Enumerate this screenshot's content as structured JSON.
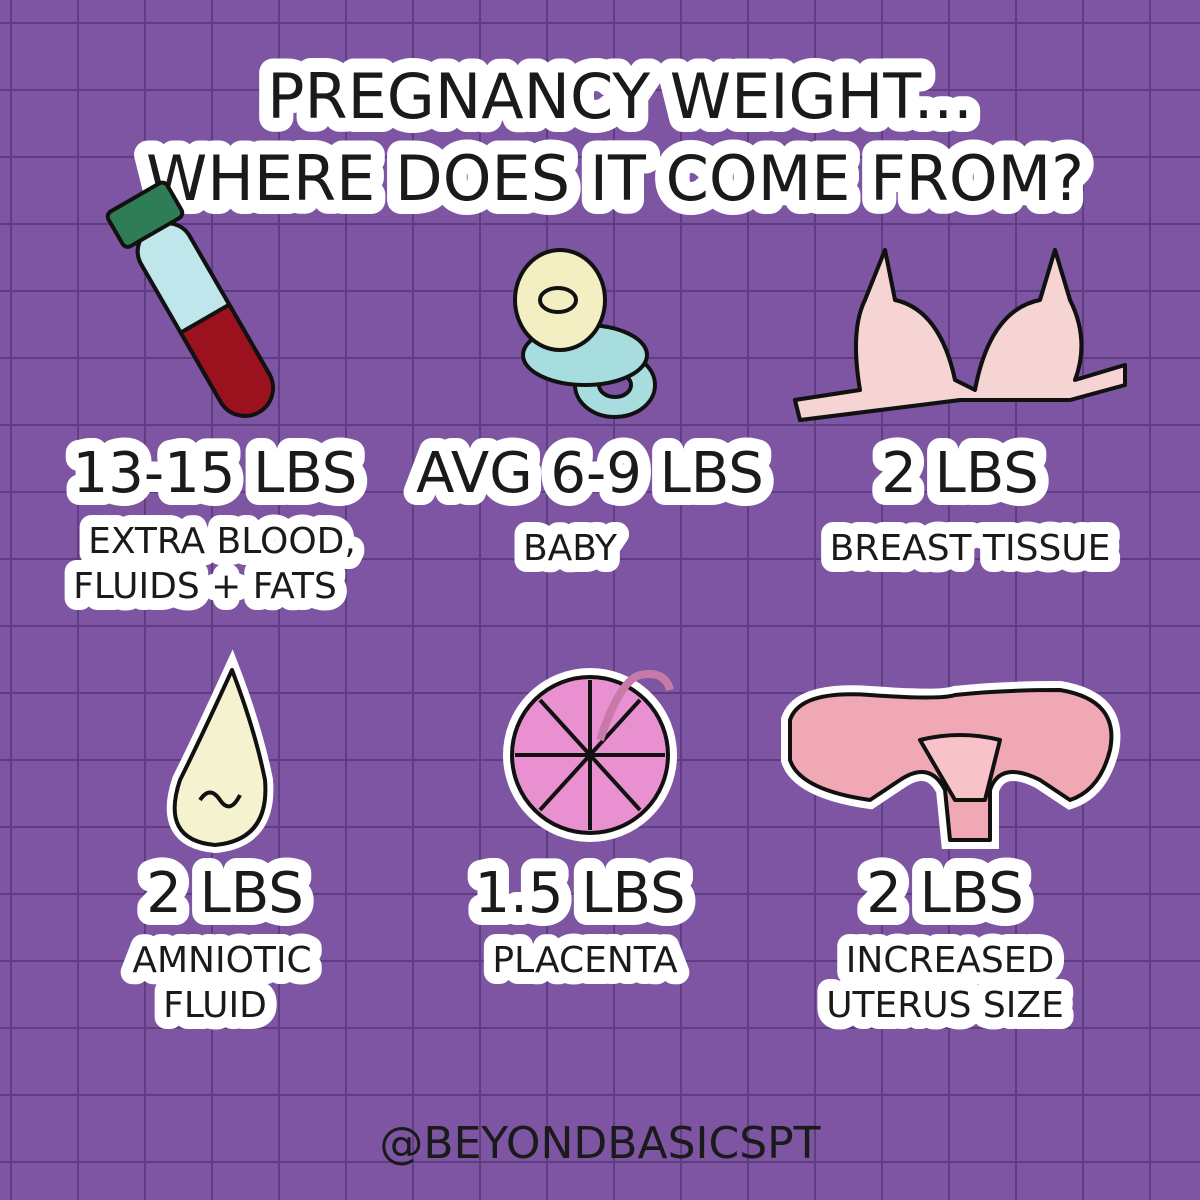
{
  "header": {
    "title": [
      "PREGNANCY WEIGHT...",
      "WHERE DOES IT COME FROM?"
    ]
  },
  "items": [
    {
      "amount": "13-15 LBS",
      "label": [
        "EXTRA BLOOD,",
        "FLUIDS + FATS"
      ]
    },
    {
      "amount": "AVG 6-9 LBS",
      "label": [
        "BABY"
      ]
    },
    {
      "amount": "2 LBS",
      "label": [
        "BREAST TISSUE"
      ]
    },
    {
      "amount": "2 LBS",
      "label": [
        "AMNIOTIC",
        "FLUID"
      ]
    },
    {
      "amount": "1.5 LBS",
      "label": [
        "PLACENTA"
      ]
    },
    {
      "amount": "2 LBS",
      "label": [
        "INCREASED",
        "UTERUS SIZE"
      ]
    }
  ],
  "footer": {
    "handle": "@BEYONDBASICSPT"
  }
}
